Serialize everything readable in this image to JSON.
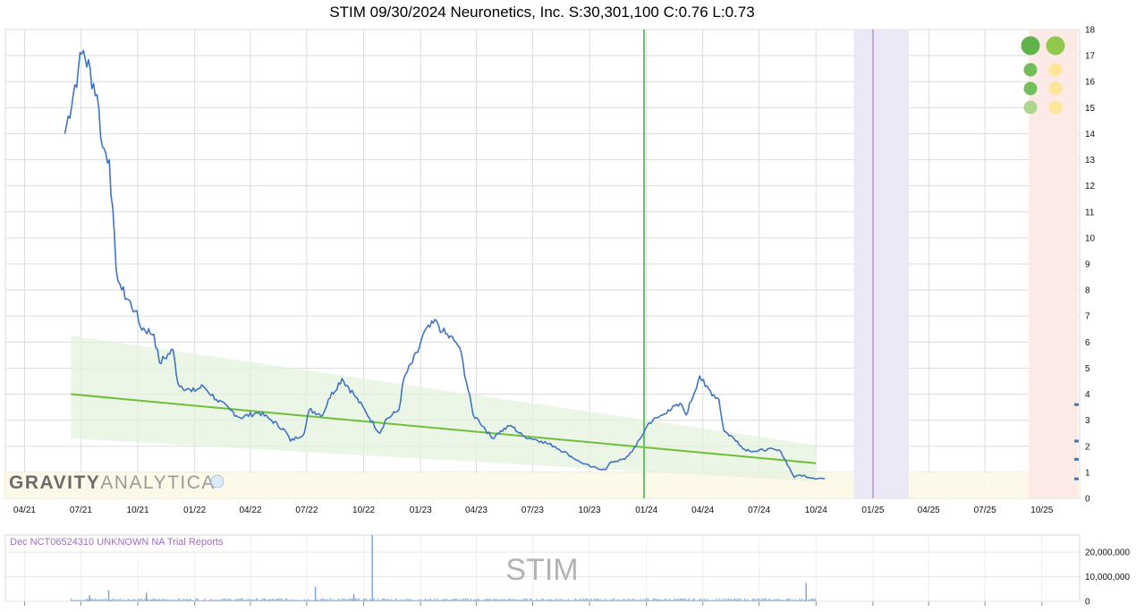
{
  "title": "STIM 09/30/2024 Neuronetics, Inc. S:30,301,100 C:0.76 L:0.73",
  "watermark": {
    "brand_bold": "GRAVITY",
    "brand_light": "ANALYTICA"
  },
  "volume_panel": {
    "event_text": "Dec NCT06524310 UNKNOWN NA Trial Reports",
    "ticker_watermark": "STIM"
  },
  "colors": {
    "price_line": "#3f74c4",
    "trend_line": "#6fbf3a",
    "trend_band": "#e4f2dc",
    "green_marker": "#67c06b",
    "purple_band": "#ece8f6",
    "purple_line": "#c3a6d8",
    "orange_band": "#fbeae6",
    "bottom_band": "#fdf8e6",
    "event_text": "#9c6fc0",
    "volume_bars": "#7ea6d8"
  },
  "chart_data": {
    "type": "line",
    "title": "STIM 09/30/2024 Neuronetics, Inc. S:30,301,100 C:0.76 L:0.73",
    "xlabel": "",
    "ylabel": "",
    "ylim": [
      0,
      18
    ],
    "x_ticks": [
      "04/21",
      "07/21",
      "10/21",
      "01/22",
      "04/22",
      "07/22",
      "10/22",
      "01/23",
      "04/23",
      "07/23",
      "10/23",
      "01/24",
      "04/24",
      "07/24",
      "10/24",
      "01/25",
      "04/25",
      "07/25",
      "10/25"
    ],
    "y_ticks": [
      0,
      1,
      2,
      3,
      4,
      5,
      6,
      7,
      8,
      9,
      10,
      11,
      12,
      13,
      14,
      15,
      16,
      17,
      18
    ],
    "grid": true,
    "series": [
      {
        "values_by_month": [
          [
            "2021-06",
            14.0
          ],
          [
            "2021-06",
            16.5
          ],
          [
            "2021-07",
            17.2
          ],
          [
            "2021-07",
            15.5
          ],
          [
            "2021-08",
            13.5
          ],
          [
            "2021-08",
            13.0
          ],
          [
            "2021-08",
            8.8
          ],
          [
            "2021-09",
            8.0
          ],
          [
            "2021-09",
            7.2
          ],
          [
            "2021-10",
            6.6
          ],
          [
            "2021-10",
            6.3
          ],
          [
            "2021-11",
            5.2
          ],
          [
            "2021-11",
            5.7
          ],
          [
            "2021-12",
            4.4
          ],
          [
            "2021-12",
            4.1
          ],
          [
            "2022-01",
            4.3
          ],
          [
            "2022-02",
            3.8
          ],
          [
            "2022-02",
            3.4
          ],
          [
            "2022-03",
            3.1
          ],
          [
            "2022-04",
            3.3
          ],
          [
            "2022-05",
            3.0
          ],
          [
            "2022-05",
            2.6
          ],
          [
            "2022-06",
            2.2
          ],
          [
            "2022-06",
            2.5
          ],
          [
            "2022-07",
            3.4
          ],
          [
            "2022-07",
            3.2
          ],
          [
            "2022-08",
            3.8
          ],
          [
            "2022-08",
            4.6
          ],
          [
            "2022-09",
            4.0
          ],
          [
            "2022-10",
            3.3
          ],
          [
            "2022-10",
            2.5
          ],
          [
            "2022-11",
            3.0
          ],
          [
            "2022-11",
            3.4
          ],
          [
            "2022-12",
            4.6
          ],
          [
            "2022-12",
            5.6
          ],
          [
            "2023-01",
            6.3
          ],
          [
            "2023-01",
            6.8
          ],
          [
            "2023-02",
            6.4
          ],
          [
            "2023-02",
            6.0
          ],
          [
            "2023-03",
            5.8
          ],
          [
            "2023-03",
            3.2
          ],
          [
            "2023-04",
            3.0
          ],
          [
            "2023-04",
            2.3
          ],
          [
            "2023-05",
            2.5
          ],
          [
            "2023-05",
            2.8
          ],
          [
            "2023-06",
            2.4
          ],
          [
            "2023-07",
            2.2
          ],
          [
            "2023-08",
            2.0
          ],
          [
            "2023-08",
            1.7
          ],
          [
            "2023-09",
            1.4
          ],
          [
            "2023-10",
            1.2
          ],
          [
            "2023-10",
            1.1
          ],
          [
            "2023-11",
            1.4
          ],
          [
            "2023-11",
            1.5
          ],
          [
            "2023-12",
            2.0
          ],
          [
            "2024-01",
            2.9
          ],
          [
            "2024-01",
            3.2
          ],
          [
            "2024-02",
            3.4
          ],
          [
            "2024-02",
            3.6
          ],
          [
            "2024-03",
            3.2
          ],
          [
            "2024-03",
            4.7
          ],
          [
            "2024-04",
            4.3
          ],
          [
            "2024-04",
            3.8
          ],
          [
            "2024-05",
            2.6
          ],
          [
            "2024-05",
            2.2
          ],
          [
            "2024-06",
            1.9
          ],
          [
            "2024-06",
            1.8
          ],
          [
            "2024-07",
            1.9
          ],
          [
            "2024-08",
            1.8
          ],
          [
            "2024-08",
            0.8
          ],
          [
            "2024-09",
            0.9
          ],
          [
            "2024-09",
            0.78
          ],
          [
            "2024-10",
            0.76
          ]
        ]
      }
    ],
    "trend": {
      "start": [
        "2021-06",
        4.0
      ],
      "end": [
        "2024-10",
        1.35
      ]
    },
    "trend_band": {
      "start": [
        2.3,
        6.25
      ],
      "end": [
        0.65,
        2.05
      ]
    },
    "event_marker_date": "2023-12",
    "purple_window": [
      "2024-12",
      "2025-02"
    ],
    "purple_line_date": "2025-01",
    "orange_window": [
      "2025-09",
      "2025-11"
    ],
    "bottom_band_range": [
      0,
      1
    ],
    "volume": {
      "y_ticks": [
        0,
        10000000,
        20000000
      ],
      "y_tick_labels": [
        "0",
        "10,000,000",
        "20,000,000"
      ],
      "spikes": [
        [
          "2021-07",
          2500000
        ],
        [
          "2021-08",
          4500000
        ],
        [
          "2021-10",
          3500000
        ],
        [
          "2022-07",
          6000000
        ],
        [
          "2022-09",
          3000000
        ],
        [
          "2022-10",
          27000000
        ],
        [
          "2024-09",
          7500000
        ]
      ]
    }
  },
  "signals": {
    "green_column": [
      "large",
      "small",
      "small",
      "small-light"
    ],
    "yellow_column": [
      "large-green",
      "small",
      "small",
      "small"
    ]
  },
  "right_axis_markers": [
    3.6,
    2.2,
    1.5,
    0.75
  ]
}
